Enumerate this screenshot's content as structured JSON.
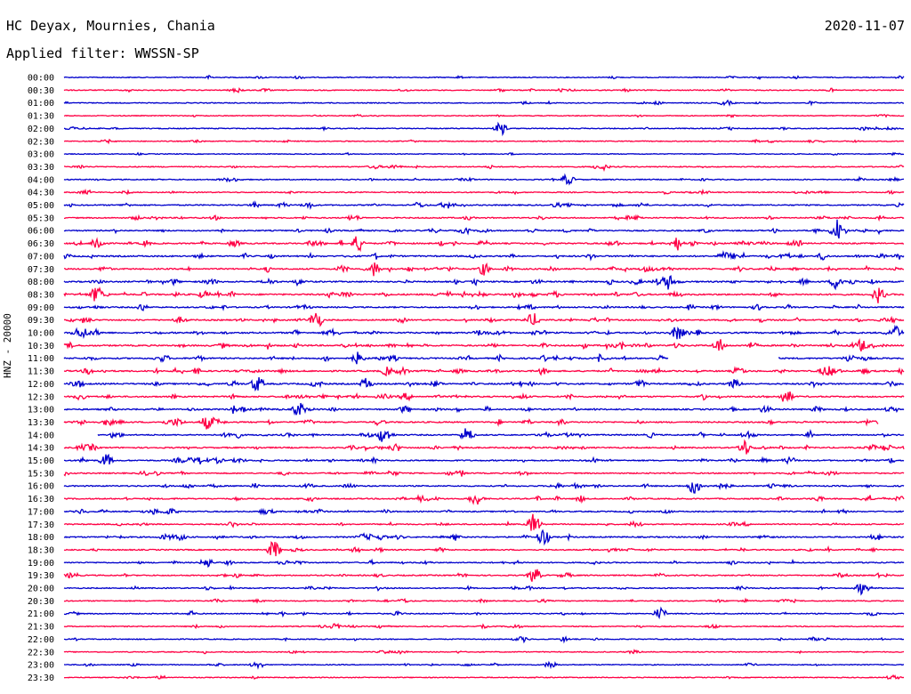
{
  "header": {
    "station": "HC Deyax, Mournies, Chania",
    "date": "2020-11-07",
    "filter": "Applied filter: WWSSN-SP"
  },
  "channel_label": "HNZ - 20000",
  "colors": {
    "even_hour": "#0000cc",
    "half_hour": "#ff0044"
  },
  "chart_data": {
    "type": "line",
    "title": "HC Deyax, Mournies, Chania",
    "subtitle": "Applied filter: WWSSN-SP",
    "ylabel": "HNZ - 20000",
    "xlabel": "",
    "grid": false,
    "rows": [
      "00:00",
      "00:30",
      "01:00",
      "01:30",
      "02:00",
      "02:30",
      "03:00",
      "03:30",
      "04:00",
      "04:30",
      "05:00",
      "05:30",
      "06:00",
      "06:30",
      "07:00",
      "07:30",
      "08:00",
      "08:30",
      "09:00",
      "09:30",
      "10:00",
      "10:30",
      "11:00",
      "11:30",
      "12:00",
      "12:30",
      "13:00",
      "13:30",
      "14:00",
      "14:30",
      "15:00",
      "15:30",
      "16:00",
      "16:30",
      "17:00",
      "17:30",
      "18:00",
      "18:30",
      "19:00",
      "19:30",
      "20:00",
      "20:30",
      "21:00",
      "21:30",
      "22:00",
      "22:30",
      "23:00",
      "23:30"
    ],
    "activity": [
      0.25,
      0.3,
      0.25,
      0.2,
      0.3,
      0.25,
      0.15,
      0.35,
      0.35,
      0.35,
      0.5,
      0.5,
      0.55,
      0.7,
      0.75,
      0.7,
      0.75,
      0.8,
      0.6,
      0.65,
      0.8,
      0.8,
      0.75,
      0.8,
      0.75,
      0.7,
      0.7,
      0.7,
      0.6,
      0.65,
      0.6,
      0.5,
      0.55,
      0.55,
      0.5,
      0.5,
      0.6,
      0.5,
      0.45,
      0.5,
      0.4,
      0.35,
      0.35,
      0.3,
      0.3,
      0.25,
      0.25,
      0.2
    ],
    "events": [
      {
        "row": "02:00",
        "t": 0.52,
        "amp": 8
      },
      {
        "row": "04:00",
        "t": 0.6,
        "amp": 6
      },
      {
        "row": "06:00",
        "t": 0.92,
        "amp": 14
      },
      {
        "row": "06:30",
        "t": 0.04,
        "amp": 8
      },
      {
        "row": "06:30",
        "t": 0.35,
        "amp": 10
      },
      {
        "row": "06:30",
        "t": 0.73,
        "amp": 8
      },
      {
        "row": "07:30",
        "t": 0.37,
        "amp": 7
      },
      {
        "row": "07:30",
        "t": 0.5,
        "amp": 7
      },
      {
        "row": "08:00",
        "t": 0.72,
        "amp": 9
      },
      {
        "row": "08:00",
        "t": 0.92,
        "amp": 9
      },
      {
        "row": "08:30",
        "t": 0.04,
        "amp": 10
      },
      {
        "row": "08:30",
        "t": 0.97,
        "amp": 10
      },
      {
        "row": "09:30",
        "t": 0.3,
        "amp": 10
      },
      {
        "row": "09:30",
        "t": 0.56,
        "amp": 6
      },
      {
        "row": "10:00",
        "t": 0.73,
        "amp": 8
      },
      {
        "row": "10:00",
        "t": 0.99,
        "amp": 8
      },
      {
        "row": "10:30",
        "t": 0.78,
        "amp": 8
      },
      {
        "row": "10:30",
        "t": 0.95,
        "amp": 8
      },
      {
        "row": "11:00",
        "t": 0.35,
        "amp": 7
      },
      {
        "row": "12:00",
        "t": 0.23,
        "amp": 10
      },
      {
        "row": "12:00",
        "t": 0.36,
        "amp": 7
      },
      {
        "row": "12:30",
        "t": 0.86,
        "amp": 9
      },
      {
        "row": "13:00",
        "t": 0.28,
        "amp": 9
      },
      {
        "row": "13:30",
        "t": 0.17,
        "amp": 8
      },
      {
        "row": "14:00",
        "t": 0.38,
        "amp": 10
      },
      {
        "row": "14:00",
        "t": 0.48,
        "amp": 10
      },
      {
        "row": "14:30",
        "t": 0.81,
        "amp": 8
      },
      {
        "row": "15:00",
        "t": 0.05,
        "amp": 8
      },
      {
        "row": "16:00",
        "t": 0.75,
        "amp": 9
      },
      {
        "row": "16:30",
        "t": 0.49,
        "amp": 8
      },
      {
        "row": "17:30",
        "t": 0.56,
        "amp": 12
      },
      {
        "row": "18:00",
        "t": 0.57,
        "amp": 9
      },
      {
        "row": "18:30",
        "t": 0.25,
        "amp": 12
      },
      {
        "row": "19:00",
        "t": 0.17,
        "amp": 6
      },
      {
        "row": "19:30",
        "t": 0.56,
        "amp": 10
      },
      {
        "row": "20:00",
        "t": 0.95,
        "amp": 7
      },
      {
        "row": "21:00",
        "t": 0.71,
        "amp": 7
      },
      {
        "row": "23:00",
        "t": 0.23,
        "amp": 5
      },
      {
        "row": "23:00",
        "t": 0.58,
        "amp": 5
      }
    ],
    "gaps": [
      {
        "row": "11:00",
        "from": 0.72,
        "to": 0.85
      },
      {
        "row": "13:30",
        "from": 0.97,
        "to": 1.0
      },
      {
        "row": "14:00",
        "from": 0.0,
        "to": 0.04
      }
    ]
  }
}
